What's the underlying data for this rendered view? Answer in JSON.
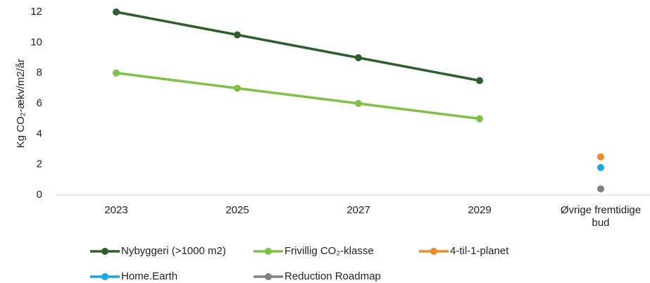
{
  "chart_data": {
    "type": "line",
    "y_label": "Kg CO₂-ækv/m2/år",
    "categories": [
      "2023",
      "2025",
      "2027",
      "2029",
      "Øvrige fremtidige bud"
    ],
    "series": [
      {
        "name": "Nybyggeri (>1000 m2)",
        "color": "#2e5e2a",
        "values": [
          12,
          10.5,
          9,
          7.5,
          null
        ]
      },
      {
        "name": "Frivillig CO₂-klasse",
        "color": "#7dc244",
        "values": [
          8,
          7,
          6,
          5,
          null
        ]
      },
      {
        "name": "4-til-1-planet",
        "color": "#f08a2b",
        "values": [
          null,
          null,
          null,
          null,
          2.5
        ]
      },
      {
        "name": "Home.Earth",
        "color": "#18a8e2",
        "values": [
          null,
          null,
          null,
          null,
          1.8
        ]
      },
      {
        "name": "Reduction Roadmap",
        "color": "#808080",
        "values": [
          null,
          null,
          null,
          null,
          0.4
        ]
      }
    ],
    "ylim": [
      0,
      12
    ],
    "yticks": [
      0,
      2,
      4,
      6,
      8,
      10,
      12
    ],
    "grid": false
  }
}
